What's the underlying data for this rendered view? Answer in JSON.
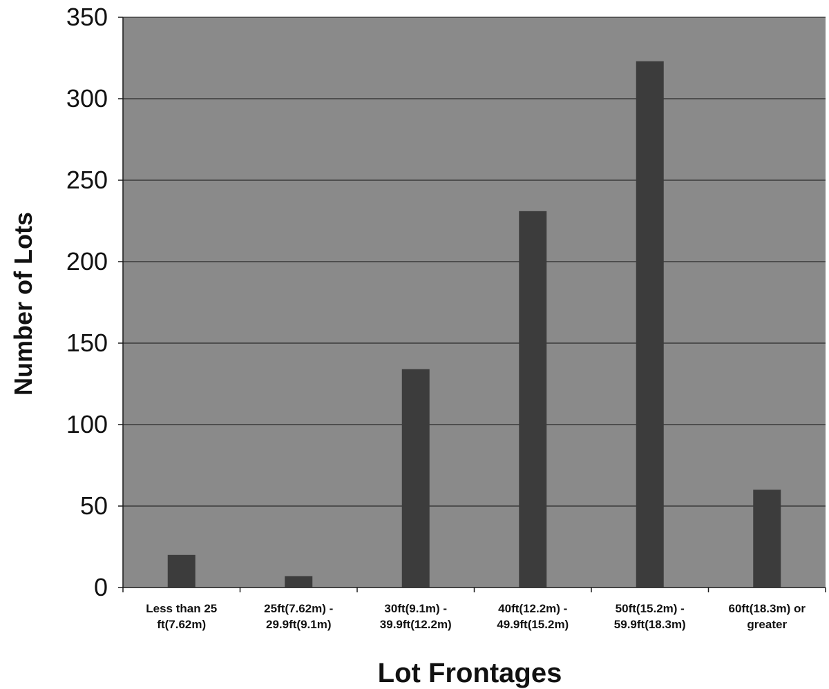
{
  "chart_data": {
    "type": "bar",
    "title": "",
    "xlabel": "Lot Frontages",
    "ylabel": "Number of Lots",
    "ylim": [
      0,
      350
    ],
    "yticks": [
      0,
      50,
      100,
      150,
      200,
      250,
      300,
      350
    ],
    "categories": [
      [
        "Less than 25",
        "ft(7.62m)"
      ],
      [
        "25ft(7.62m) -",
        "29.9ft(9.1m)"
      ],
      [
        "30ft(9.1m) -",
        "39.9ft(12.2m)"
      ],
      [
        "40ft(12.2m) -",
        "49.9ft(15.2m)"
      ],
      [
        "50ft(15.2m) -",
        "59.9ft(18.3m)"
      ],
      [
        "60ft(18.3m) or",
        "greater"
      ]
    ],
    "values": [
      20,
      7,
      134,
      231,
      323,
      60
    ],
    "grid": true,
    "legend": "none",
    "colors": {
      "plot_background": "#8a8a8a",
      "bar": "#3c3c3c",
      "gridline": "#2a2a2a",
      "axis": "#1a1a1a"
    }
  }
}
